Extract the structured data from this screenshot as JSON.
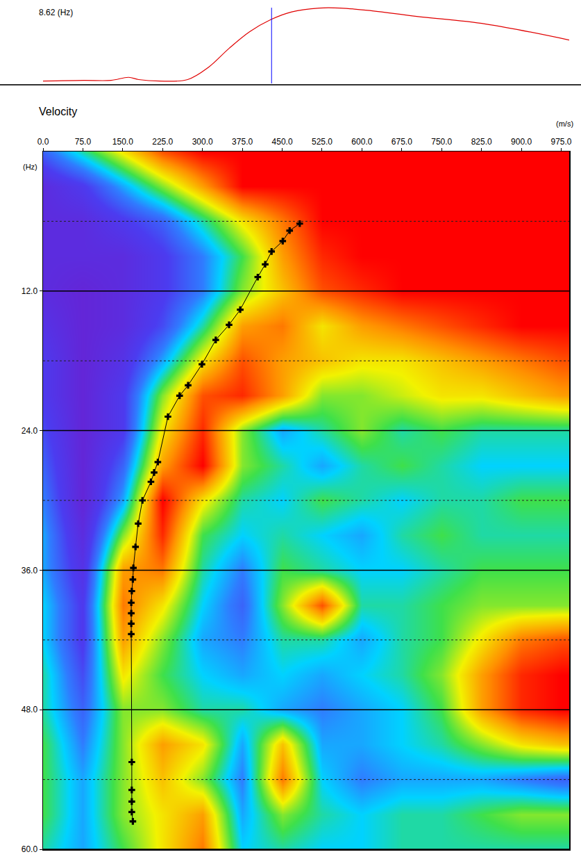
{
  "chart_data": [
    {
      "type": "line",
      "label": "8.62 (Hz)",
      "x": [
        0,
        76,
        128,
        161,
        180,
        219,
        272,
        311,
        350,
        389,
        429,
        468,
        520,
        559,
        611,
        703,
        833,
        990
      ],
      "values": [
        0.03,
        0.04,
        0.04,
        0.08,
        0.05,
        0.03,
        0.05,
        0.21,
        0.46,
        0.68,
        0.84,
        0.94,
        0.99,
        0.99,
        0.96,
        0.88,
        0.78,
        0.57
      ],
      "color": "#e00000",
      "cursor": 430,
      "ylim": [
        0,
        1.05
      ],
      "xlim": [
        0,
        990
      ],
      "tick_labels": false
    },
    {
      "type": "heatmap",
      "title": "Velocity",
      "xlabel": "(m/s)",
      "ylabel": "(Hz)",
      "xlim": [
        0,
        990
      ],
      "ylim": [
        0,
        60
      ],
      "xticks": [
        {
          "value": 0,
          "label": "0.0"
        },
        {
          "value": 75,
          "label": "75.0"
        },
        {
          "value": 150,
          "label": "150.0"
        },
        {
          "value": 225,
          "label": "225.0"
        },
        {
          "value": 300,
          "label": "300.0"
        },
        {
          "value": 375,
          "label": "375.0"
        },
        {
          "value": 450,
          "label": "450.0"
        },
        {
          "value": 525,
          "label": "525.0"
        },
        {
          "value": 600,
          "label": "600.0"
        },
        {
          "value": 675,
          "label": "675.0"
        },
        {
          "value": 750,
          "label": "750.0"
        },
        {
          "value": 825,
          "label": "825.0"
        },
        {
          "value": 900,
          "label": "900.0"
        },
        {
          "value": 975,
          "label": "975.0"
        }
      ],
      "yticks": [
        {
          "value": 12,
          "label": "12.0"
        },
        {
          "value": 24,
          "label": "24.0"
        },
        {
          "value": 36,
          "label": "36.0"
        },
        {
          "value": 48,
          "label": "48.0"
        },
        {
          "value": 60,
          "label": "60.0"
        }
      ],
      "grid": true,
      "x": [
        0,
        75,
        150,
        225,
        300,
        375,
        450,
        525,
        600,
        675,
        750,
        825,
        900,
        975
      ],
      "y": [
        0,
        3,
        6,
        9,
        12,
        15,
        18,
        21,
        24,
        27,
        30,
        33,
        36,
        39,
        42,
        45,
        48,
        51,
        54,
        57,
        60
      ],
      "zlim": [
        0,
        1
      ],
      "cells": [
        [
          0.3,
          0.5,
          0.7,
          0.9,
          1,
          1,
          1,
          1,
          1,
          1,
          1,
          1,
          1,
          1
        ],
        [
          0.1,
          0.2,
          0.4,
          0.6,
          0.8,
          1,
          1,
          1,
          1,
          1,
          1,
          1,
          1,
          1
        ],
        [
          0.1,
          0.1,
          0.2,
          0.3,
          0.5,
          0.7,
          0.85,
          1,
          1,
          1,
          1,
          1,
          1,
          1
        ],
        [
          0.1,
          0.1,
          0.1,
          0.2,
          0.35,
          0.55,
          0.8,
          0.95,
          1,
          1,
          1,
          1,
          1,
          1
        ],
        [
          0.1,
          0.05,
          0.1,
          0.2,
          0.35,
          0.6,
          0.75,
          0.9,
          0.95,
          1,
          1,
          1,
          1,
          1
        ],
        [
          0.15,
          0.05,
          0.1,
          0.25,
          0.5,
          0.8,
          0.85,
          0.7,
          0.8,
          0.85,
          0.9,
          0.95,
          1,
          1
        ],
        [
          0.2,
          0.05,
          0.15,
          0.4,
          0.7,
          0.9,
          0.8,
          0.75,
          0.7,
          0.7,
          0.75,
          0.8,
          0.85,
          0.9
        ],
        [
          0.2,
          0.05,
          0.2,
          0.6,
          0.9,
          0.95,
          0.8,
          0.6,
          0.6,
          0.65,
          0.7,
          0.7,
          0.75,
          0.8
        ],
        [
          0.25,
          0.05,
          0.2,
          0.7,
          0.95,
          0.6,
          0.4,
          0.5,
          0.6,
          0.5,
          0.55,
          0.5,
          0.5,
          0.5
        ],
        [
          0.3,
          0.05,
          0.3,
          0.8,
          1,
          0.6,
          0.5,
          0.4,
          0.5,
          0.55,
          0.5,
          0.45,
          0.45,
          0.45
        ],
        [
          0.35,
          0.05,
          0.4,
          1,
          0.7,
          0.5,
          0.45,
          0.55,
          0.5,
          0.45,
          0.5,
          0.5,
          0.55,
          0.55
        ],
        [
          0.4,
          0.1,
          0.6,
          0.95,
          0.55,
          0.45,
          0.5,
          0.45,
          0.4,
          0.5,
          0.55,
          0.5,
          0.5,
          0.5
        ],
        [
          0.4,
          0.15,
          0.8,
          0.85,
          0.5,
          0.35,
          0.55,
          0.5,
          0.45,
          0.45,
          0.5,
          0.55,
          0.55,
          0.55
        ],
        [
          0.45,
          0.2,
          0.85,
          0.7,
          0.45,
          0.3,
          0.6,
          0.9,
          0.5,
          0.5,
          0.55,
          0.6,
          0.6,
          0.6
        ],
        [
          0.45,
          0.2,
          0.8,
          0.6,
          0.4,
          0.35,
          0.5,
          0.5,
          0.4,
          0.5,
          0.55,
          0.7,
          0.85,
          0.9
        ],
        [
          0.5,
          0.25,
          0.7,
          0.55,
          0.45,
          0.4,
          0.45,
          0.4,
          0.45,
          0.5,
          0.6,
          0.8,
          0.95,
          1
        ],
        [
          0.5,
          0.3,
          0.6,
          0.6,
          0.5,
          0.5,
          0.4,
          0.35,
          0.4,
          0.45,
          0.55,
          0.8,
          0.95,
          1
        ],
        [
          0.55,
          0.35,
          0.6,
          0.8,
          0.7,
          0.4,
          0.75,
          0.4,
          0.4,
          0.45,
          0.5,
          0.6,
          0.7,
          0.75
        ],
        [
          0.55,
          0.4,
          0.6,
          0.75,
          0.6,
          0.35,
          0.85,
          0.45,
          0.35,
          0.4,
          0.4,
          0.4,
          0.35,
          0.3
        ],
        [
          0.55,
          0.4,
          0.6,
          0.7,
          0.8,
          0.4,
          0.6,
          0.5,
          0.45,
          0.5,
          0.5,
          0.55,
          0.6,
          0.6
        ],
        [
          0.5,
          0.4,
          0.55,
          0.7,
          0.85,
          0.45,
          0.5,
          0.45,
          0.45,
          0.5,
          0.5,
          0.5,
          0.5,
          0.5
        ]
      ],
      "picks": {
        "x": [
          483,
          464,
          451,
          430,
          418,
          404,
          371,
          350,
          325,
          299,
          273,
          257,
          235,
          216,
          209,
          203,
          187,
          179,
          174,
          170,
          169,
          167,
          166,
          166,
          166,
          166,
          167,
          167,
          167,
          167,
          169
        ],
        "values": [
          6.2,
          6.8,
          7.7,
          8.6,
          9.7,
          10.8,
          13.6,
          14.9,
          16.2,
          18.3,
          20.1,
          21.0,
          22.8,
          26.7,
          27.6,
          28.4,
          30.0,
          32.0,
          34.0,
          35.8,
          36.8,
          37.8,
          38.8,
          39.7,
          40.6,
          41.5,
          52.5,
          54.9,
          55.9,
          56.8,
          57.6
        ],
        "color": "#000000",
        "marker": "cross",
        "line_style": "solid"
      }
    }
  ]
}
